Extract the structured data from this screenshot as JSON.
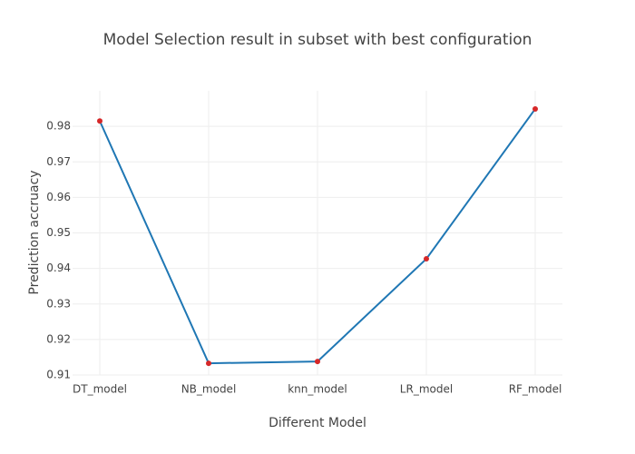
{
  "chart_data": {
    "type": "line",
    "title": "Model Selection result in subset with best configuration",
    "x_label": "Different Model",
    "y_label": "Prediction accruacy",
    "categories": [
      "DT_model",
      "NB_model",
      "knn_model",
      "LR_model",
      "RF_model"
    ],
    "series": [
      {
        "values": [
          0.9815,
          0.9133,
          0.9138,
          0.9427,
          0.9849
        ],
        "color": "#1f77b4",
        "marker_color": "#d62728"
      }
    ],
    "ylim": [
      0.91,
      0.99
    ],
    "yticks": [
      0.91,
      0.92,
      0.93,
      0.94,
      0.95,
      0.96,
      0.97,
      0.98
    ],
    "grid": true
  }
}
